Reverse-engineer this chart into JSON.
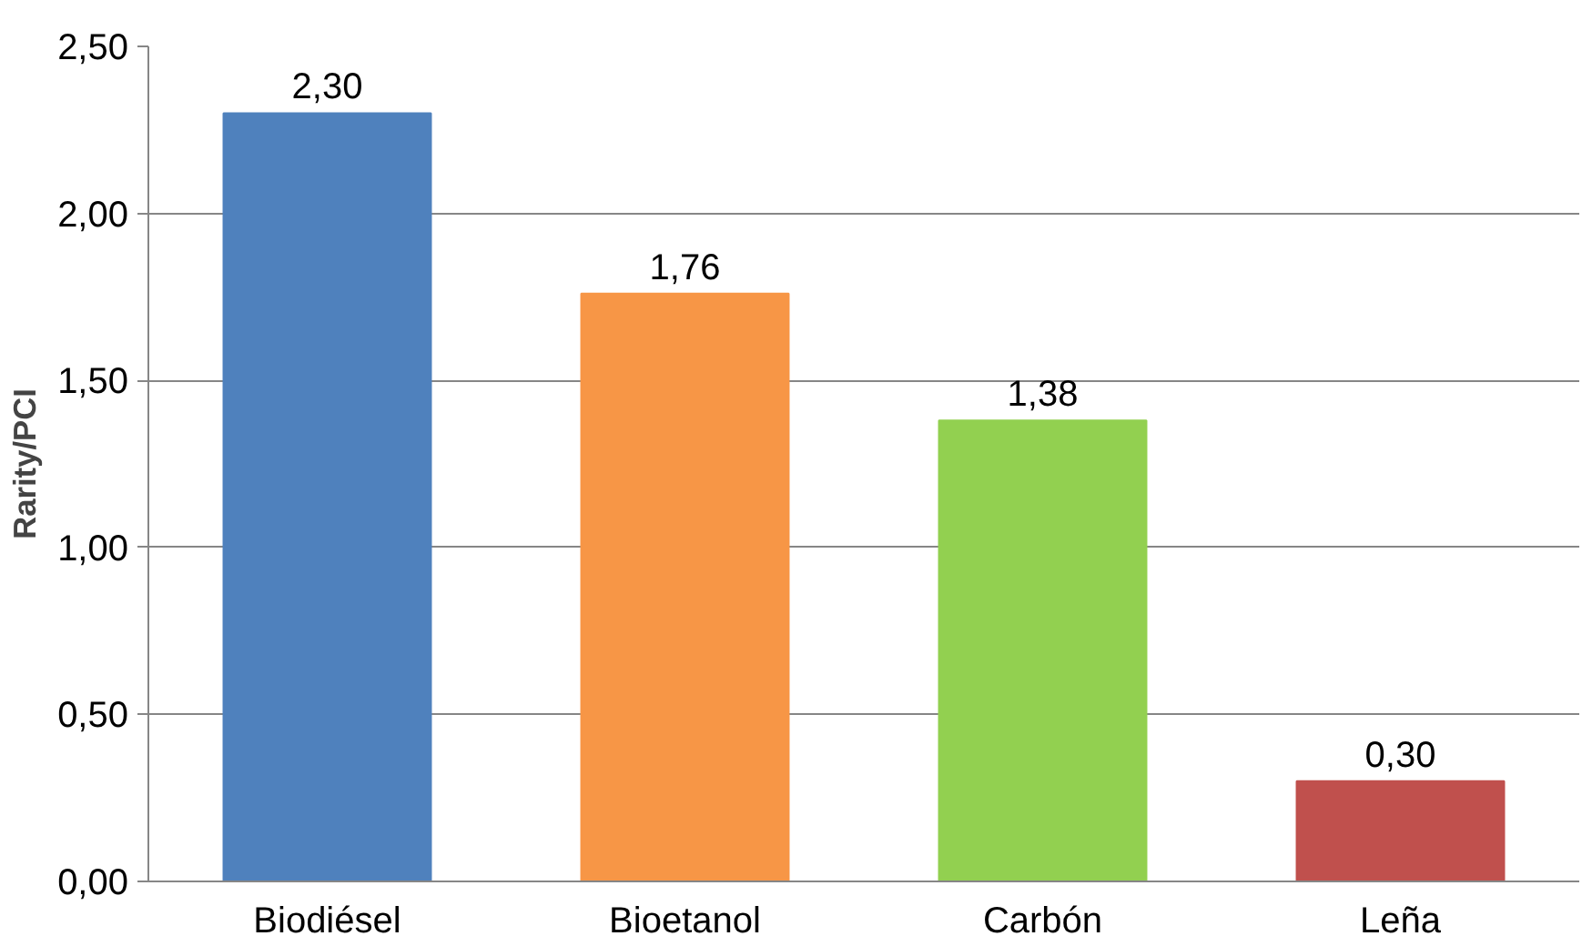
{
  "chart_data": {
    "type": "bar",
    "ylabel": "Rarity/PCI",
    "categories": [
      "Biodiésel",
      "Bioetanol",
      "Carbón",
      "Leña"
    ],
    "values": [
      2.3,
      1.76,
      1.38,
      0.3
    ],
    "colors": [
      "#4f81bd",
      "#f79646",
      "#92d050",
      "#c0504d"
    ],
    "value_labels": [
      "2,30",
      "1,76",
      "1,38",
      "0,30"
    ],
    "ylim": [
      0,
      2.5
    ],
    "yticks": [
      {
        "value": 0,
        "label": "0,00"
      },
      {
        "value": 0.5,
        "label": "0,50"
      },
      {
        "value": 1.0,
        "label": "1,00"
      },
      {
        "value": 1.5,
        "label": "1,50"
      },
      {
        "value": 2.0,
        "label": "2,00"
      },
      {
        "value": 2.5,
        "label": "2,50"
      }
    ],
    "grid": "y"
  }
}
